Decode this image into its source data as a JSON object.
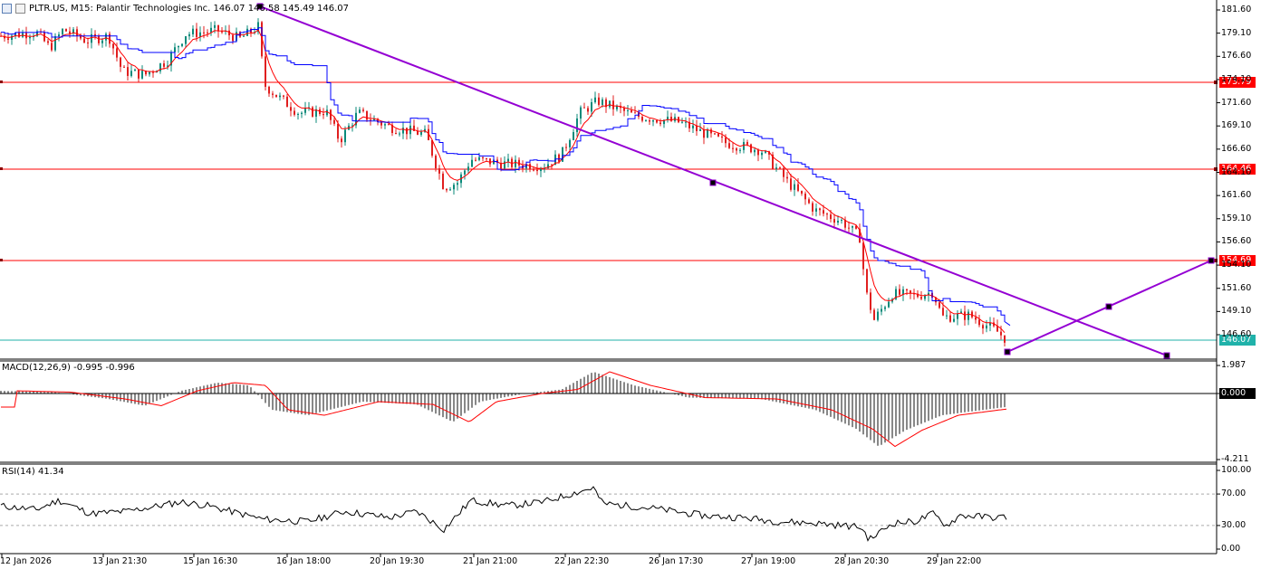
{
  "header": {
    "symbol_line": "PLTR.US, M15:  Palantir Technologies Inc.  146.07 146.58 145.49 146.07"
  },
  "price_axis": {
    "ticks": [
      "181.60",
      "179.10",
      "176.60",
      "174.10",
      "171.60",
      "169.10",
      "166.60",
      "164.10",
      "161.60",
      "159.10",
      "156.60",
      "154.10",
      "151.60",
      "149.10",
      "146.60"
    ],
    "hlines": [
      {
        "label": "173.79",
        "color": "#ff0000"
      },
      {
        "label": "164.46",
        "color": "#ff0000"
      },
      {
        "label": "154.69",
        "color": "#ff0000"
      }
    ],
    "current": {
      "label": "146.07",
      "color": "#20b2aa"
    }
  },
  "macd": {
    "title": "MACD(12,26,9) -0.995 -0.996",
    "ticks": [
      "1.987",
      "0.000",
      "-4.211"
    ]
  },
  "rsi": {
    "title": "RSI(14) 41.34",
    "ticks": [
      "100.00",
      "70.00",
      "30.00",
      "0.00"
    ]
  },
  "time_axis": {
    "labels": [
      "12 Jan 2026",
      "13 Jan 21:30",
      "15 Jan 16:30",
      "16 Jan 18:00",
      "20 Jan 19:30",
      "21 Jan 21:00",
      "22 Jan 22:30",
      "26 Jan 17:30",
      "27 Jan 19:00",
      "28 Jan 20:30",
      "29 Jan 22:00"
    ]
  },
  "colors": {
    "bull": "#0b8a7a",
    "bear": "#e01f1f",
    "fast_line": "#ff0000",
    "slow_line": "#0000ff",
    "trendline": "#9400d3",
    "hline": "#ff0000",
    "current_line": "#20b2aa"
  },
  "chart_data": {
    "type": "line",
    "series": [
      {
        "name": "PLTR.US close",
        "x": [
          "12 Jan 2026",
          "13 Jan 21:30",
          "15 Jan 16:30",
          "16 Jan 18:00",
          "20 Jan 19:30",
          "21 Jan 21:00",
          "22 Jan 22:30",
          "26 Jan 17:30",
          "27 Jan 19:00",
          "28 Jan 20:30",
          "29 Jan 22:00"
        ],
        "values": [
          178.8,
          176.0,
          179.1,
          172.5,
          168.5,
          164.8,
          170.0,
          169.0,
          162.0,
          150.5,
          147.5
        ]
      }
    ],
    "ylim": [
      145.5,
      182.5
    ],
    "hlines": [
      173.79,
      164.46,
      154.69
    ],
    "current": 146.07
  }
}
